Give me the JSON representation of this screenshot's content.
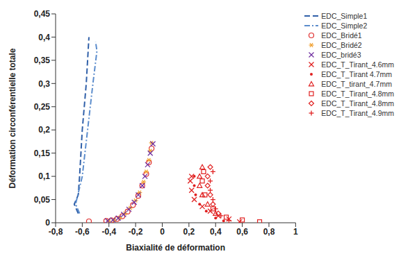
{
  "chart_data": {
    "type": "scatter",
    "x_label": "Biaxialité de déformation",
    "y_label": "Déformation circonférentielle totale",
    "xlim": [
      -0.8,
      1
    ],
    "xticks": [
      {
        "value": -0.8,
        "label": "-0,8"
      },
      {
        "value": -0.6,
        "label": "-0,6"
      },
      {
        "value": -0.4,
        "label": "-0,4"
      },
      {
        "value": -0.2,
        "label": "-0,2"
      },
      0,
      {
        "value": 0.2,
        "label": "0,2"
      },
      {
        "value": 0.4,
        "label": "0,4"
      },
      {
        "value": 0.6,
        "label": "0,6"
      },
      {
        "value": 0.8,
        "label": "0,8"
      },
      1
    ],
    "ylim": [
      0,
      0.45
    ],
    "yticks": [
      0,
      {
        "value": 0.05,
        "label": "0,05"
      },
      {
        "value": 0.1,
        "label": "0,1"
      },
      {
        "value": 0.15,
        "label": "0,15"
      },
      {
        "value": 0.2,
        "label": "0,2"
      },
      {
        "value": 0.25,
        "label": "0,25"
      },
      {
        "value": 0.3,
        "label": "0,3"
      },
      {
        "value": 0.35,
        "label": "0,35"
      },
      {
        "value": 0.4,
        "label": "0,4"
      },
      {
        "value": 0.45,
        "label": "0,45"
      }
    ],
    "grid": false,
    "legend": "top-right",
    "series": [
      {
        "name": "EDC_Simple1",
        "type": "line",
        "line_style": "dashed",
        "color": "#2f5fa8",
        "x": [
          -0.63,
          -0.66,
          -0.63,
          -0.62,
          -0.6,
          -0.57,
          -0.55
        ],
        "values": [
          0.02,
          0.04,
          0.06,
          0.1,
          0.2,
          0.3,
          0.4
        ]
      },
      {
        "name": "EDC_Simple2",
        "type": "line",
        "line_style": "dashdot",
        "color": "#5b8ccc",
        "x": [
          -0.62,
          -0.65,
          -0.6,
          -0.56,
          -0.52,
          -0.49,
          -0.5
        ],
        "values": [
          0.02,
          0.04,
          0.1,
          0.2,
          0.3,
          0.37,
          0.39
        ]
      },
      {
        "name": "EDC_Bridé1",
        "type": "scatter",
        "marker": "circle_open",
        "color": "#e03030",
        "x": [
          -0.55,
          -0.42,
          -0.38,
          -0.34,
          -0.3,
          -0.26,
          -0.22,
          -0.18,
          -0.15,
          -0.12,
          -0.1,
          -0.08
        ],
        "values": [
          0.003,
          0.004,
          0.005,
          0.008,
          0.014,
          0.024,
          0.038,
          0.058,
          0.08,
          0.105,
          0.13,
          0.16
        ]
      },
      {
        "name": "EDC_Bridé2",
        "type": "scatter",
        "marker": "asterisk",
        "color": "#f0a030",
        "x": [
          -0.4,
          -0.36,
          -0.32,
          -0.28,
          -0.24,
          -0.2,
          -0.17,
          -0.14,
          -0.12,
          -0.1,
          -0.09,
          -0.08
        ],
        "values": [
          0.003,
          0.006,
          0.011,
          0.02,
          0.032,
          0.048,
          0.065,
          0.088,
          0.11,
          0.135,
          0.155,
          0.172
        ]
      },
      {
        "name": "EDC_bridé3",
        "type": "scatter",
        "marker": "x",
        "color": "#7030a0",
        "x": [
          -0.41,
          -0.37,
          -0.33,
          -0.29,
          -0.25,
          -0.21,
          -0.18,
          -0.15,
          -0.13,
          -0.11,
          -0.09,
          -0.07
        ],
        "values": [
          0.004,
          0.006,
          0.01,
          0.018,
          0.029,
          0.044,
          0.06,
          0.08,
          0.1,
          0.125,
          0.15,
          0.17
        ]
      },
      {
        "name": "EDC_T_Tirant_4.6mm",
        "type": "scatter",
        "marker": "x",
        "color": "#e02020",
        "x": [
          0.58,
          0.5,
          0.42,
          0.36,
          0.3,
          0.24,
          0.22,
          0.21,
          0.22
        ],
        "values": [
          0.002,
          0.008,
          0.015,
          0.025,
          0.035,
          0.05,
          0.07,
          0.09,
          0.1
        ]
      },
      {
        "name": "EDC_T_Tirant 4.7mm",
        "type": "scatter",
        "marker": "dot",
        "color": "#e02020",
        "x": [
          0.24,
          0.24,
          0.25,
          0.28,
          0.33,
          0.4,
          0.46
        ],
        "values": [
          0.1,
          0.08,
          0.06,
          0.04,
          0.025,
          0.01,
          0.004
        ]
      },
      {
        "name": "EDC_T_tirant_4.7mm",
        "type": "scatter",
        "marker": "triangle_open",
        "color": "#e02020",
        "x": [
          0.3,
          0.28,
          0.28,
          0.3,
          0.34,
          0.4
        ],
        "values": [
          0.12,
          0.1,
          0.08,
          0.06,
          0.04,
          0.02
        ]
      },
      {
        "name": "EDC_T_Tirant_4.8mm",
        "type": "scatter",
        "marker": "square_open",
        "color": "#e02020",
        "x": [
          0.73,
          0.6,
          0.48,
          0.38,
          0.32,
          0.3,
          0.31
        ],
        "values": [
          0.002,
          0.006,
          0.012,
          0.03,
          0.06,
          0.09,
          0.11
        ]
      },
      {
        "name": "EDC_T_Tirant_4.8mm",
        "type": "scatter",
        "marker": "diamond_open",
        "color": "#e02020",
        "x": [
          0.36,
          0.34,
          0.34,
          0.36,
          0.38,
          0.42
        ],
        "values": [
          0.12,
          0.1,
          0.08,
          0.06,
          0.04,
          0.02
        ]
      },
      {
        "name": "EDC_T_Tirant_4.9mm",
        "type": "scatter",
        "marker": "plus",
        "color": "#e02020",
        "x": [
          0.38,
          0.36,
          0.36,
          0.38,
          0.4,
          0.44,
          0.5
        ],
        "values": [
          0.11,
          0.09,
          0.07,
          0.05,
          0.03,
          0.015,
          0.005
        ]
      }
    ]
  }
}
